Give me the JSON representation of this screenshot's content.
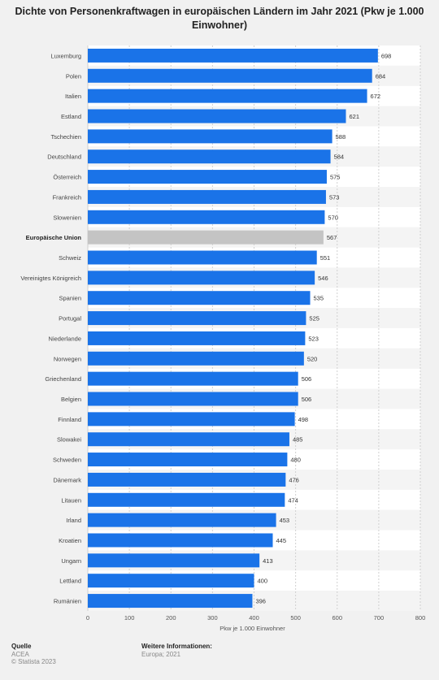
{
  "title": "Dichte von Personenkraftwagen in europäischen Ländern im Jahr 2021 (Pkw je 1.000 Einwohner)",
  "chart_data": {
    "type": "bar",
    "orientation": "horizontal",
    "xlabel": "Pkw je 1.000 Einwohner",
    "xlim": [
      0,
      800
    ],
    "xticks": [
      "0",
      "100",
      "200",
      "300",
      "400",
      "500",
      "600",
      "700",
      "800"
    ],
    "grid": true,
    "colors": {
      "bar": "#1a73e8",
      "highlight": "#c4c4c4"
    },
    "highlight_category": "Europäische Union",
    "categories": [
      "Luxemburg",
      "Polen",
      "Italien",
      "Estland",
      "Tschechien",
      "Deutschland",
      "Österreich",
      "Frankreich",
      "Slowenien",
      "Europäische Union",
      "Schweiz",
      "Vereinigtes Königreich",
      "Spanien",
      "Portugal",
      "Niederlande",
      "Norwegen",
      "Griechenland",
      "Belgien",
      "Finnland",
      "Slowakei",
      "Schweden",
      "Dänemark",
      "Litauen",
      "Irland",
      "Kroatien",
      "Ungarn",
      "Lettland",
      "Rumänien"
    ],
    "values": [
      698,
      684,
      672,
      621,
      588,
      584,
      575,
      573,
      570,
      567,
      551,
      546,
      535,
      525,
      523,
      520,
      506,
      506,
      498,
      485,
      480,
      476,
      474,
      453,
      445,
      413,
      400,
      396
    ],
    "value_labels": [
      "698",
      "684",
      "672",
      "621",
      "588",
      "584",
      "575",
      "573",
      "570",
      "567",
      "551",
      "546",
      "535",
      "525",
      "523",
      "520",
      "506",
      "506",
      "498",
      "485",
      "480",
      "476",
      "474",
      "453",
      "445",
      "413",
      "400",
      "396"
    ]
  },
  "footer": {
    "source_heading": "Quelle",
    "source_name": "ACEA",
    "copyright": "© Statista 2023",
    "info_heading": "Weitere Informationen:",
    "info_text": "Europa; 2021"
  }
}
